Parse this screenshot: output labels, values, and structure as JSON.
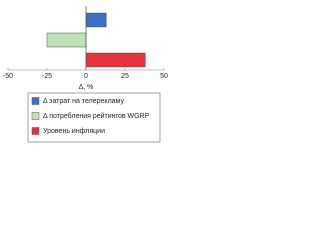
{
  "chart_data": {
    "type": "bar",
    "orientation": "horizontal",
    "categories": [
      "Δ затрат на телерекламу",
      "Δ потребления рейтингов WGRP",
      "Уровень инфляции"
    ],
    "values": [
      13,
      -25,
      38
    ],
    "colors": [
      "#3d6fc6",
      "#bfe3b4",
      "#e8323c"
    ],
    "xlim": [
      -50,
      50
    ],
    "xticks": [
      -50,
      -25,
      0,
      25,
      50
    ],
    "xlabel": "Δ, %",
    "legend": "bottom"
  }
}
